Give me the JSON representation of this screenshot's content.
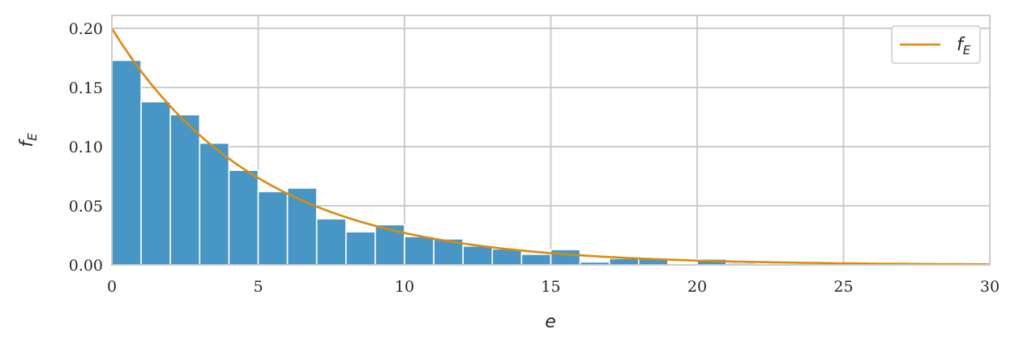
{
  "chart_data": {
    "type": "bar",
    "subtype": "histogram with density curve",
    "xlabel": "e",
    "ylabel": "f_E",
    "xlim": [
      0,
      30
    ],
    "ylim": [
      0,
      0.211
    ],
    "xticks": [
      0,
      5,
      10,
      15,
      20,
      25,
      30
    ],
    "yticks": [
      "0.00",
      "0.05",
      "0.10",
      "0.15",
      "0.20"
    ],
    "grid": true,
    "legend": {
      "placement": "top-right",
      "entries": [
        "f_E"
      ]
    },
    "bin_width": 1,
    "bin_edges_start": [
      0,
      1,
      2,
      3,
      4,
      5,
      6,
      7,
      8,
      9,
      10,
      11,
      12,
      13,
      14,
      15,
      16,
      17,
      18,
      19,
      20,
      21,
      22,
      23
    ],
    "histogram_density": [
      0.173,
      0.138,
      0.127,
      0.103,
      0.08,
      0.062,
      0.065,
      0.039,
      0.028,
      0.034,
      0.024,
      0.022,
      0.016,
      0.0135,
      0.009,
      0.013,
      0.0025,
      0.0055,
      0.005,
      0.001,
      0.005,
      0.0015,
      0.0005,
      0.0005
    ],
    "curve": {
      "name": "f_E",
      "formula": "0.2*exp(-e/5)",
      "rate": 0.2
    },
    "colors": {
      "bars": "#4394c4",
      "curve": "#dd8a0c",
      "grid": "#cccccc"
    }
  }
}
